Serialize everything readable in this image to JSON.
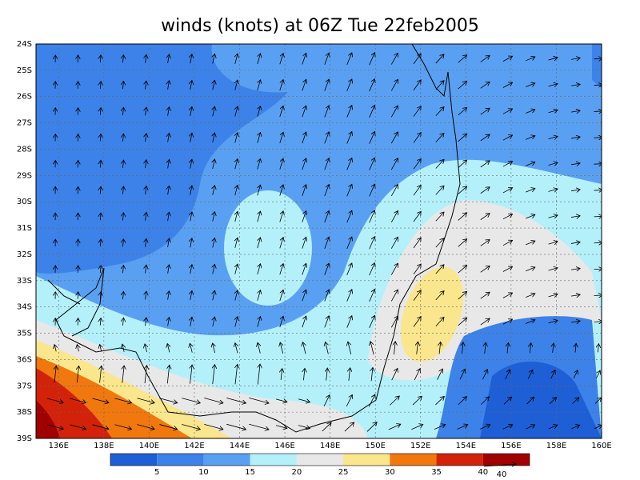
{
  "title": "winds (knots) at 06Z Tue 22feb2005",
  "lat_labels": [
    "24S",
    "25S",
    "26S",
    "27S",
    "28S",
    "29S",
    "30S",
    "31S",
    "32S",
    "33S",
    "34S",
    "35S",
    "36S",
    "37S",
    "38S",
    "39S"
  ],
  "lon_labels": [
    "136E",
    "138E",
    "140E",
    "142E",
    "144E",
    "146E",
    "148E",
    "150E",
    "152E",
    "154E",
    "156E",
    "158E",
    "160E"
  ],
  "colorbar": {
    "labels": [
      "5",
      "10",
      "15",
      "20",
      "25",
      "30",
      "35",
      "40"
    ],
    "colors": [
      "#1f5fd6",
      "#3d82e8",
      "#5aa0f2",
      "#b4f0fa",
      "#e8e8e8",
      "#fae68c",
      "#f0780f",
      "#d2230a",
      "#a00000"
    ]
  },
  "reference_vector": "40"
}
